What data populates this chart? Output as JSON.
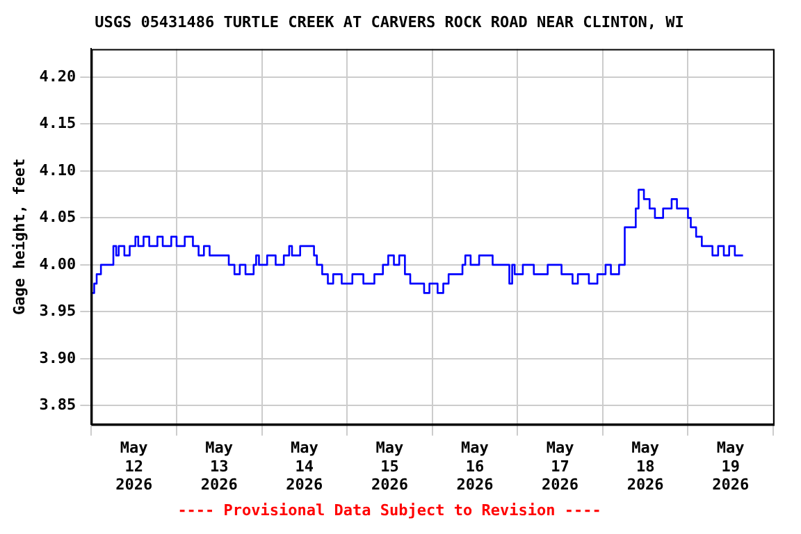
{
  "chart_data": {
    "type": "step",
    "title": "USGS 05431486 TURTLE CREEK AT CARVERS ROCK ROAD NEAR CLINTON, WI",
    "ylabel": "Gage height, feet",
    "annotations": [
      "---- Provisional Data Subject to Revision ----"
    ],
    "x": [
      "2026-05-12T00:00",
      "2026-05-12T00:48",
      "2026-05-12T01:30",
      "2026-05-12T02:42",
      "2026-05-12T03:54",
      "2026-05-12T06:12",
      "2026-05-12T07:00",
      "2026-05-12T07:42",
      "2026-05-12T09:18",
      "2026-05-12T10:48",
      "2026-05-12T12:24",
      "2026-05-12T13:12",
      "2026-05-12T14:42",
      "2026-05-12T16:18",
      "2026-05-12T18:36",
      "2026-05-12T20:06",
      "2026-05-12T22:30",
      "2026-05-13T00:00",
      "2026-05-13T02:18",
      "2026-05-13T04:36",
      "2026-05-13T06:12",
      "2026-05-13T07:42",
      "2026-05-13T09:18",
      "2026-05-13T10:48",
      "2026-05-13T12:24",
      "2026-05-13T14:42",
      "2026-05-13T16:18",
      "2026-05-13T17:48",
      "2026-05-13T19:24",
      "2026-05-13T21:42",
      "2026-05-13T22:24",
      "2026-05-13T23:12",
      "2026-05-14T01:30",
      "2026-05-14T03:54",
      "2026-05-14T06:12",
      "2026-05-14T07:42",
      "2026-05-14T08:30",
      "2026-05-14T10:48",
      "2026-05-14T13:12",
      "2026-05-14T14:42",
      "2026-05-14T15:30",
      "2026-05-14T17:00",
      "2026-05-14T18:36",
      "2026-05-14T20:06",
      "2026-05-14T22:30",
      "2026-05-15T01:30",
      "2026-05-15T04:36",
      "2026-05-15T07:42",
      "2026-05-15T10:06",
      "2026-05-15T11:36",
      "2026-05-15T13:12",
      "2026-05-15T14:42",
      "2026-05-15T16:18",
      "2026-05-15T17:48",
      "2026-05-15T19:24",
      "2026-05-15T21:42",
      "2026-05-15T23:12",
      "2026-05-16T01:30",
      "2026-05-16T03:06",
      "2026-05-16T04:36",
      "2026-05-16T06:12",
      "2026-05-16T08:30",
      "2026-05-16T09:18",
      "2026-05-16T10:48",
      "2026-05-16T13:12",
      "2026-05-16T14:42",
      "2026-05-16T17:00",
      "2026-05-16T18:36",
      "2026-05-16T21:42",
      "2026-05-16T22:30",
      "2026-05-16T23:12",
      "2026-05-17T01:30",
      "2026-05-17T04:36",
      "2026-05-17T08:30",
      "2026-05-17T12:24",
      "2026-05-17T15:30",
      "2026-05-17T17:00",
      "2026-05-17T20:06",
      "2026-05-17T22:30",
      "2026-05-18T00:48",
      "2026-05-18T02:18",
      "2026-05-18T04:36",
      "2026-05-18T06:12",
      "2026-05-18T06:54",
      "2026-05-18T09:18",
      "2026-05-18T10:06",
      "2026-05-18T11:36",
      "2026-05-18T13:12",
      "2026-05-18T14:42",
      "2026-05-18T17:00",
      "2026-05-18T19:24",
      "2026-05-18T20:54",
      "2026-05-18T22:30",
      "2026-05-19T00:00",
      "2026-05-19T00:48",
      "2026-05-19T02:18",
      "2026-05-19T03:54",
      "2026-05-19T05:24",
      "2026-05-19T06:54",
      "2026-05-19T08:30",
      "2026-05-19T10:06",
      "2026-05-19T11:36",
      "2026-05-19T13:12",
      "2026-05-19T15:30"
    ],
    "series": [
      {
        "color": "#0000ff",
        "values": [
          3.97,
          3.97,
          3.98,
          3.99,
          4.0,
          4.0,
          4.02,
          4.01,
          4.02,
          4.01,
          4.02,
          4.03,
          4.02,
          4.03,
          4.02,
          4.03,
          4.02,
          4.03,
          4.02,
          4.03,
          4.02,
          4.01,
          4.02,
          4.01,
          4.01,
          4.01,
          4.0,
          3.99,
          4.0,
          3.99,
          4.0,
          4.01,
          4.0,
          4.01,
          4.0,
          4.01,
          4.02,
          4.01,
          4.02,
          4.02,
          4.01,
          4.0,
          3.99,
          3.98,
          3.99,
          3.98,
          3.99,
          3.98,
          3.99,
          4.0,
          4.01,
          4.0,
          4.01,
          3.99,
          3.98,
          3.98,
          3.97,
          3.98,
          3.97,
          3.98,
          3.99,
          3.99,
          4.0,
          4.01,
          4.0,
          4.01,
          4.01,
          4.0,
          4.0,
          3.98,
          4.0,
          3.99,
          4.0,
          3.99,
          4.0,
          3.99,
          3.98,
          3.99,
          3.98,
          3.99,
          4.0,
          3.99,
          4.0,
          4.04,
          4.04,
          4.06,
          4.08,
          4.07,
          4.06,
          4.05,
          4.06,
          4.07,
          4.06,
          4.06,
          4.05,
          4.04,
          4.03,
          4.02,
          4.02,
          4.01,
          4.02,
          4.01,
          4.02,
          4.01
        ]
      }
    ],
    "xlim": [
      "2026-05-12T00:00",
      "2026-05-20T00:00"
    ],
    "xticks": [
      {
        "value": "2026-05-12T00:00",
        "label": null
      },
      {
        "value": "2026-05-12T12:00",
        "label": "May 12 2026"
      },
      {
        "value": "2026-05-13T00:00",
        "label": null
      },
      {
        "value": "2026-05-13T12:00",
        "label": "May 13 2026"
      },
      {
        "value": "2026-05-14T00:00",
        "label": null
      },
      {
        "value": "2026-05-14T12:00",
        "label": "May 14 2026"
      },
      {
        "value": "2026-05-15T00:00",
        "label": null
      },
      {
        "value": "2026-05-15T12:00",
        "label": "May 15 2026"
      },
      {
        "value": "2026-05-16T00:00",
        "label": null
      },
      {
        "value": "2026-05-16T12:00",
        "label": "May 16 2026"
      },
      {
        "value": "2026-05-17T00:00",
        "label": null
      },
      {
        "value": "2026-05-17T12:00",
        "label": "May 17 2026"
      },
      {
        "value": "2026-05-18T00:00",
        "label": null
      },
      {
        "value": "2026-05-18T12:00",
        "label": "May 18 2026"
      },
      {
        "value": "2026-05-19T00:00",
        "label": null
      },
      {
        "value": "2026-05-19T12:00",
        "label": "May 19 2026"
      },
      {
        "value": "2026-05-20T00:00",
        "label": null
      }
    ],
    "ylim": [
      3.83,
      4.23
    ],
    "yticks": [
      {
        "value": 3.85,
        "label": "3.85"
      },
      {
        "value": 3.9,
        "label": "3.90"
      },
      {
        "value": 3.95,
        "label": "3.95"
      },
      {
        "value": 4.0,
        "label": "4.00"
      },
      {
        "value": 4.05,
        "label": "4.05"
      },
      {
        "value": 4.1,
        "label": "4.10"
      },
      {
        "value": 4.15,
        "label": "4.15"
      },
      {
        "value": 4.2,
        "label": "4.20"
      }
    ],
    "grid": true,
    "legend": false,
    "marker": "none",
    "line_style": "solid"
  }
}
